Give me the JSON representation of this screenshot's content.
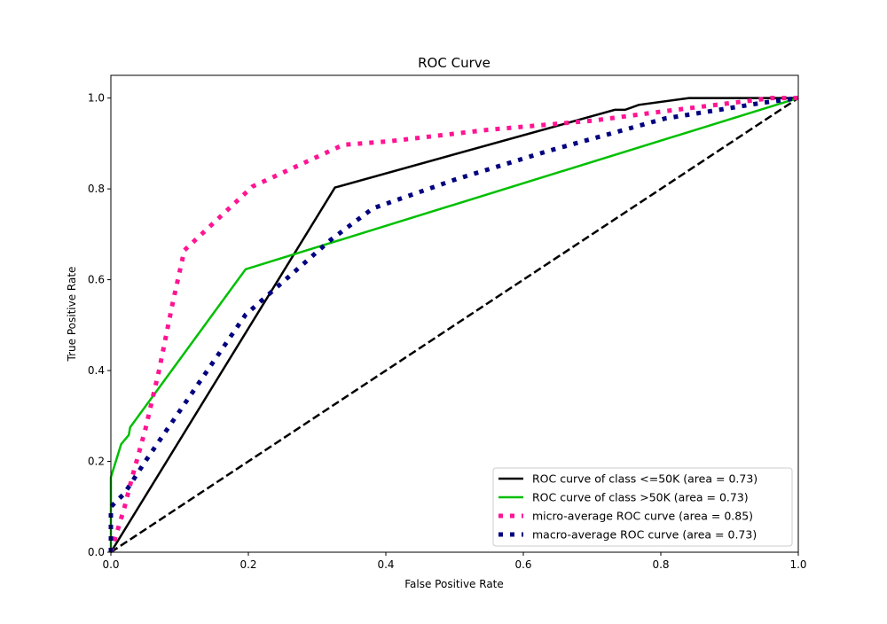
{
  "chart_data": {
    "type": "line",
    "title": "ROC Curve",
    "xlabel": "False Positive Rate",
    "ylabel": "True Positive Rate",
    "xlim": [
      0,
      1.0
    ],
    "ylim": [
      0,
      1.05
    ],
    "xticks": [
      "0.0",
      "0.2",
      "0.4",
      "0.6",
      "0.8",
      "1.0"
    ],
    "yticks": [
      "0.0",
      "0.2",
      "0.4",
      "0.6",
      "0.8",
      "1.0"
    ],
    "grid": false,
    "legend_position": "lower-right",
    "series": [
      {
        "name": "ROC curve of class  <=50K (area = 0.73)",
        "color": "#000000",
        "style": "solid",
        "x": [
          0,
          0.326,
          0.733,
          0.748,
          0.768,
          0.841,
          1.0
        ],
        "y": [
          0,
          0.803,
          0.974,
          0.974,
          0.985,
          1.0,
          1.0
        ]
      },
      {
        "name": "ROC curve of class  >50K (area = 0.73)",
        "color": "#00bf00",
        "style": "solid",
        "x": [
          0,
          0,
          0.015,
          0.026,
          0.028,
          0.196,
          1.0
        ],
        "y": [
          0,
          0.165,
          0.238,
          0.258,
          0.275,
          0.623,
          1.0
        ]
      },
      {
        "name": "micro-average ROC curve (area = 0.85)",
        "color": "#ff1493",
        "style": "dotted",
        "x": [
          0,
          0.01,
          0.02,
          0.03,
          0.05,
          0.07,
          0.09,
          0.107,
          0.206,
          0.338,
          0.406,
          0.548,
          0.7,
          0.8,
          0.961,
          1.0
        ],
        "y": [
          0,
          0.05,
          0.1,
          0.16,
          0.27,
          0.4,
          0.55,
          0.665,
          0.805,
          0.897,
          0.905,
          0.93,
          0.95,
          0.97,
          1.0,
          1.0
        ]
      },
      {
        "name": "macro-average ROC curve (area = 0.73)",
        "color": "#000080",
        "style": "dotted",
        "x": [
          0,
          0,
          0.02,
          0.05,
          0.196,
          0.32,
          0.381,
          0.5,
          0.635,
          0.806,
          0.95,
          1.0
        ],
        "y": [
          0,
          0.1,
          0.13,
          0.2,
          0.523,
          0.688,
          0.757,
          0.82,
          0.883,
          0.955,
          0.99,
          1.0
        ]
      },
      {
        "color": "#000000",
        "style": "dashed",
        "x": [
          0,
          1
        ],
        "y": [
          0,
          1
        ]
      }
    ]
  }
}
